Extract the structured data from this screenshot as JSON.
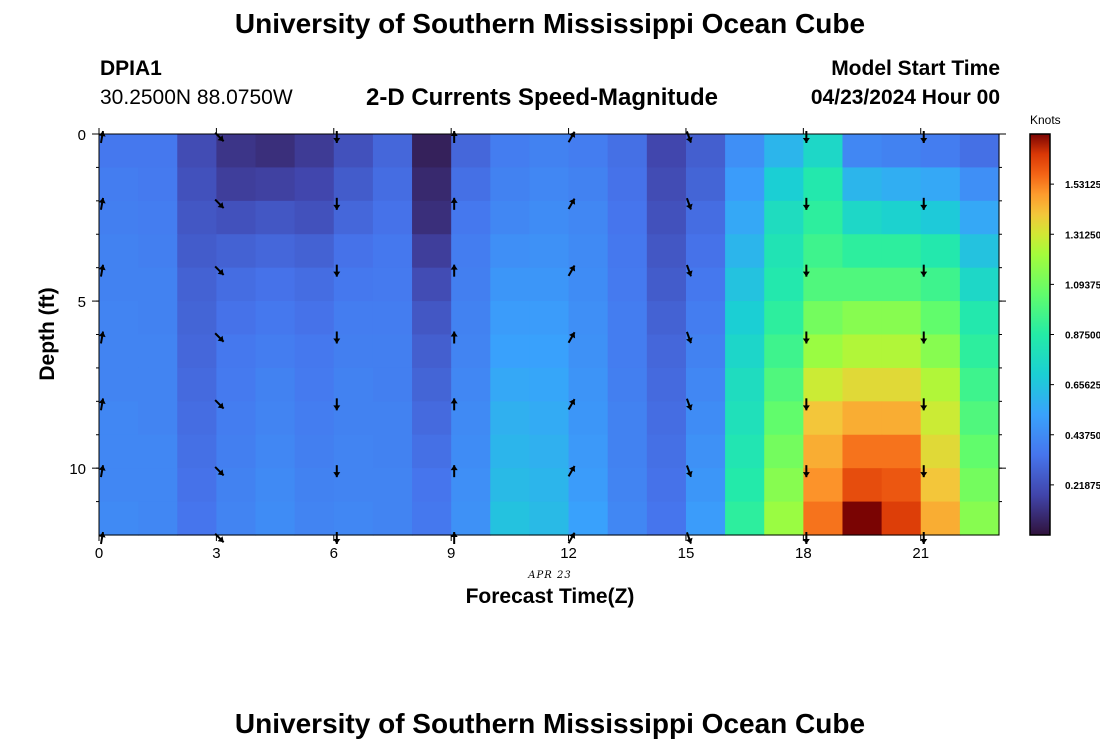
{
  "header": {
    "title": "University of Southern Mississippi Ocean Cube",
    "station_id": "DPIA1",
    "coordinates": "30.2500N  88.0750W",
    "model_start_label": "Model Start Time",
    "model_start_value": "04/23/2024 Hour 00"
  },
  "footer": {
    "title": "University of Southern Mississippi Ocean Cube"
  },
  "chart_data": {
    "type": "heatmap",
    "title": "2-D Currents Speed-Magnitude",
    "xlabel": "Forecast Time(Z)",
    "ylabel": "Depth (ft)",
    "date_label": "APR 23",
    "xlim": [
      0,
      23
    ],
    "ylim": [
      0,
      12
    ],
    "x_ticks": [
      0,
      3,
      6,
      9,
      12,
      15,
      18,
      21
    ],
    "y_ticks": [
      0,
      5,
      10
    ],
    "colorbar": {
      "title": "Knots",
      "range": [
        0,
        1.75
      ],
      "tick_values": [
        0.21875,
        0.4375,
        0.65625,
        0.875,
        1.09375,
        1.3125,
        1.53125
      ],
      "tick_labels": [
        "0.21875",
        "0.43750",
        "0.65625",
        "0.87500",
        "1.09375",
        "1.31250",
        "1.53125"
      ]
    },
    "hours": [
      0,
      1,
      2,
      3,
      4,
      5,
      6,
      7,
      8,
      9,
      10,
      11,
      12,
      13,
      14,
      15,
      16,
      17,
      18,
      19,
      20,
      21,
      22
    ],
    "depths_ft": [
      0,
      1,
      2,
      3,
      4,
      5,
      6,
      7,
      8,
      9,
      10,
      11
    ],
    "speed_knots": [
      [
        0.36,
        0.36,
        0.2,
        0.12,
        0.1,
        0.14,
        0.22,
        0.3,
        0.05,
        0.3,
        0.38,
        0.4,
        0.38,
        0.33,
        0.18,
        0.27,
        0.45,
        0.6,
        0.75,
        0.42,
        0.4,
        0.38,
        0.33
      ],
      [
        0.38,
        0.37,
        0.22,
        0.15,
        0.16,
        0.18,
        0.26,
        0.32,
        0.08,
        0.33,
        0.4,
        0.42,
        0.4,
        0.34,
        0.2,
        0.29,
        0.5,
        0.7,
        0.85,
        0.6,
        0.57,
        0.55,
        0.45
      ],
      [
        0.39,
        0.38,
        0.24,
        0.22,
        0.24,
        0.22,
        0.3,
        0.34,
        0.1,
        0.36,
        0.42,
        0.44,
        0.42,
        0.35,
        0.22,
        0.32,
        0.55,
        0.78,
        0.9,
        0.75,
        0.72,
        0.68,
        0.55
      ],
      [
        0.4,
        0.39,
        0.26,
        0.28,
        0.3,
        0.28,
        0.34,
        0.36,
        0.15,
        0.38,
        0.45,
        0.46,
        0.43,
        0.36,
        0.24,
        0.34,
        0.6,
        0.82,
        0.95,
        0.9,
        0.9,
        0.85,
        0.65
      ],
      [
        0.4,
        0.4,
        0.28,
        0.32,
        0.34,
        0.32,
        0.36,
        0.37,
        0.2,
        0.39,
        0.48,
        0.48,
        0.44,
        0.37,
        0.26,
        0.36,
        0.65,
        0.85,
        1.0,
        1.0,
        1.0,
        0.95,
        0.75
      ],
      [
        0.41,
        0.4,
        0.29,
        0.34,
        0.36,
        0.34,
        0.38,
        0.38,
        0.24,
        0.4,
        0.5,
        0.5,
        0.45,
        0.38,
        0.28,
        0.38,
        0.7,
        0.9,
        1.1,
        1.15,
        1.15,
        1.05,
        0.85
      ],
      [
        0.41,
        0.41,
        0.3,
        0.36,
        0.38,
        0.36,
        0.39,
        0.39,
        0.27,
        0.41,
        0.52,
        0.52,
        0.46,
        0.38,
        0.3,
        0.4,
        0.74,
        0.95,
        1.2,
        1.25,
        1.25,
        1.15,
        0.9
      ],
      [
        0.41,
        0.41,
        0.31,
        0.37,
        0.4,
        0.37,
        0.4,
        0.39,
        0.29,
        0.42,
        0.55,
        0.54,
        0.47,
        0.39,
        0.31,
        0.42,
        0.78,
        1.0,
        1.3,
        1.35,
        1.35,
        1.25,
        0.95
      ],
      [
        0.42,
        0.41,
        0.32,
        0.38,
        0.41,
        0.38,
        0.4,
        0.4,
        0.31,
        0.43,
        0.58,
        0.56,
        0.48,
        0.4,
        0.32,
        0.44,
        0.8,
        1.05,
        1.4,
        1.45,
        1.45,
        1.3,
        1.0
      ],
      [
        0.42,
        0.42,
        0.33,
        0.39,
        0.42,
        0.39,
        0.41,
        0.4,
        0.33,
        0.44,
        0.6,
        0.58,
        0.49,
        0.4,
        0.33,
        0.46,
        0.83,
        1.1,
        1.45,
        1.55,
        1.55,
        1.35,
        1.05
      ],
      [
        0.42,
        0.42,
        0.34,
        0.4,
        0.43,
        0.4,
        0.41,
        0.41,
        0.35,
        0.45,
        0.62,
        0.6,
        0.5,
        0.41,
        0.34,
        0.48,
        0.86,
        1.15,
        1.5,
        1.62,
        1.6,
        1.4,
        1.1
      ],
      [
        0.43,
        0.42,
        0.35,
        0.41,
        0.44,
        0.41,
        0.42,
        0.41,
        0.36,
        0.46,
        0.65,
        0.62,
        0.52,
        0.42,
        0.35,
        0.5,
        0.9,
        1.2,
        1.55,
        1.75,
        1.65,
        1.45,
        1.15
      ]
    ],
    "vector_rows_depth_ft": [
      0,
      2,
      4,
      6,
      8,
      10,
      12
    ],
    "vector_cols_hour": [
      0,
      3,
      6,
      9,
      12,
      15,
      18,
      21
    ],
    "vector_direction_deg": [
      [
        10,
        135,
        180,
        0,
        30,
        160,
        180,
        180
      ],
      [
        10,
        135,
        180,
        0,
        30,
        160,
        180,
        180
      ],
      [
        10,
        135,
        180,
        0,
        30,
        160,
        180,
        180
      ],
      [
        10,
        135,
        180,
        0,
        30,
        160,
        180,
        180
      ],
      [
        10,
        135,
        180,
        0,
        30,
        160,
        180,
        180
      ],
      [
        10,
        135,
        180,
        0,
        30,
        160,
        180,
        180
      ],
      [
        10,
        135,
        180,
        0,
        30,
        160,
        180,
        180
      ]
    ]
  }
}
